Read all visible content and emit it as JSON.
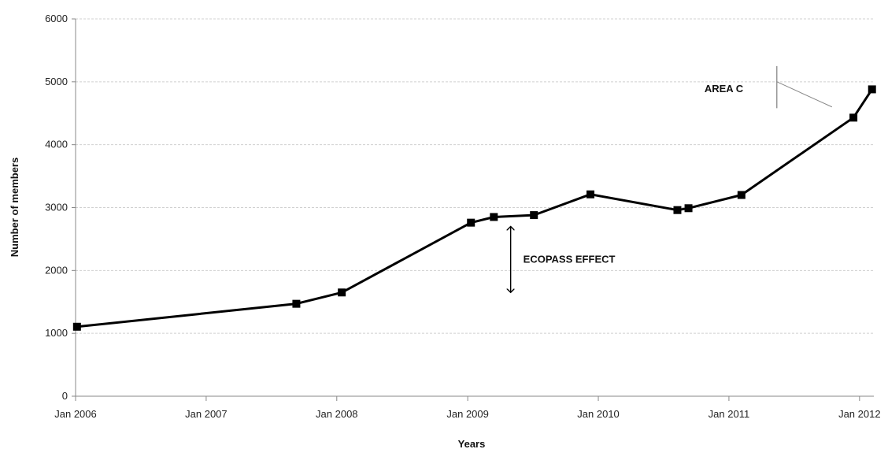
{
  "chart_data": {
    "type": "line",
    "title": "",
    "xlabel": "Years",
    "ylabel": "Number of members",
    "ylim": [
      0,
      6000
    ],
    "yticks": [
      0,
      1000,
      2000,
      3000,
      4000,
      5000,
      6000
    ],
    "xlim": [
      "2006-01-01",
      "2012-02-10"
    ],
    "xticks": [
      {
        "date": "2006-01-01",
        "label": "Jan 2006"
      },
      {
        "date": "2007-01-01",
        "label": "Jan 2007"
      },
      {
        "date": "2008-01-01",
        "label": "Jan 2008"
      },
      {
        "date": "2009-01-01",
        "label": "Jan 2009"
      },
      {
        "date": "2010-01-01",
        "label": "Jan 2010"
      },
      {
        "date": "2011-01-01",
        "label": "Jan 2011"
      },
      {
        "date": "2012-01-01",
        "label": "Jan 2012"
      }
    ],
    "grid": {
      "horizontal": true,
      "vertical": false
    },
    "series": [
      {
        "marker": "square",
        "color": "#000000",
        "points": [
          {
            "x": "2006-01-05",
            "y": 1105
          },
          {
            "x": "2007-09-10",
            "y": 1470
          },
          {
            "x": "2008-01-15",
            "y": 1650
          },
          {
            "x": "2009-01-10",
            "y": 2760
          },
          {
            "x": "2009-03-15",
            "y": 2850
          },
          {
            "x": "2009-07-05",
            "y": 2880
          },
          {
            "x": "2009-12-10",
            "y": 3210
          },
          {
            "x": "2010-08-10",
            "y": 2960
          },
          {
            "x": "2010-09-10",
            "y": 2990
          },
          {
            "x": "2011-02-05",
            "y": 3200
          },
          {
            "x": "2011-12-15",
            "y": 4430
          },
          {
            "x": "2012-02-05",
            "y": 4880
          }
        ]
      }
    ],
    "annotations": [
      {
        "text": "ECOPASS EFFECT",
        "arrow": "double-vertical",
        "x": "2009-05-01",
        "y_from": 1650,
        "y_to": 2700
      },
      {
        "text": "AREA C",
        "marker": "bracket-line",
        "x": "2011-05-15",
        "y_from": 4580,
        "y_to": 5250
      }
    ]
  }
}
